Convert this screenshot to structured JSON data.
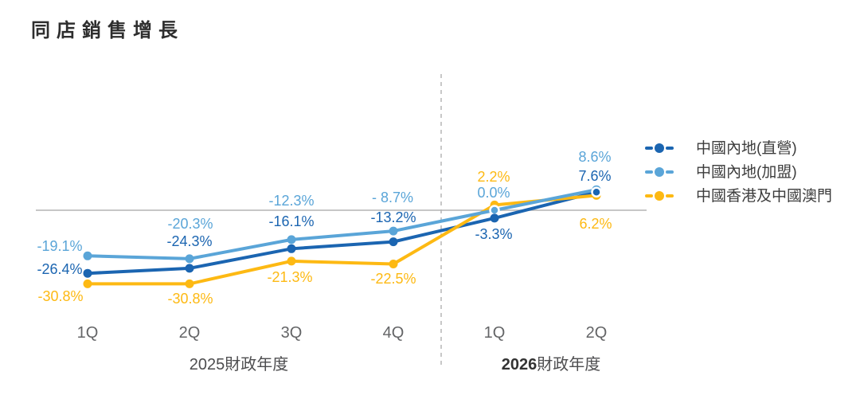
{
  "title": "同店銷售增長",
  "chart_data": {
    "type": "line",
    "title": "同店銷售增長",
    "categories": [
      "1Q",
      "2Q",
      "3Q",
      "4Q",
      "1Q",
      "2Q"
    ],
    "fiscal_years": [
      {
        "year": "2025",
        "suffix": "財政年度",
        "current": false
      },
      {
        "year": "2026",
        "suffix": "財政年度",
        "current": true
      }
    ],
    "series": [
      {
        "name": "中國內地(直營)",
        "color": "#1b65b1",
        "values": [
          -26.4,
          -24.3,
          -16.1,
          -13.2,
          -3.3,
          7.6
        ],
        "labels": [
          "-26.4%",
          "-24.3%",
          "-16.1%",
          "-13.2%",
          "-3.3%",
          "7.6%"
        ]
      },
      {
        "name": "中國內地(加盟)",
        "color": "#5aa5d8",
        "values": [
          -19.1,
          -20.3,
          -12.3,
          -8.7,
          0.0,
          8.6
        ],
        "labels": [
          "-19.1%",
          "-20.3%",
          "-12.3%",
          "- 8.7%",
          "0.0%",
          "8.6%"
        ]
      },
      {
        "name": "中國香港及中國澳門",
        "color": "#fdb913",
        "values": [
          -30.8,
          -30.8,
          -21.3,
          -22.5,
          2.2,
          6.2
        ],
        "labels": [
          "-30.8%",
          "-30.8%",
          "-21.3%",
          "-22.5%",
          "2.2%",
          "6.2%"
        ]
      }
    ],
    "baseline_value": 0,
    "baseline_color": "#b3b3b3",
    "divider_color": "#b5b5b5",
    "ylim": [
      -32,
      10
    ],
    "grid": false,
    "legend_position": "right",
    "xlabel": "",
    "ylabel": ""
  }
}
